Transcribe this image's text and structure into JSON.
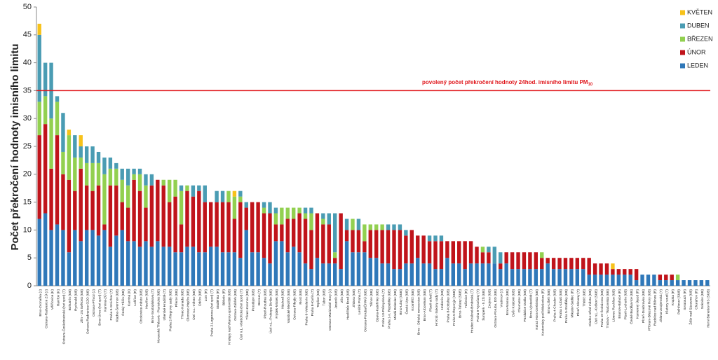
{
  "chart_data": {
    "type": "stacked_bar",
    "ylabel": "Počet překročení hodnoty imisního limitu",
    "ylim": [
      0,
      50
    ],
    "yticks": [
      0,
      5,
      10,
      15,
      20,
      25,
      30,
      35,
      40,
      45,
      50
    ],
    "legend_position": "upper right",
    "reference_line": {
      "value": 35,
      "color": "#e0161b",
      "label": "povolený počet překročení hodnoty 24hod. imisního limitu PM",
      "label_subscript": "10"
    },
    "categories": [
      "Brno-Zvonařka (J)",
      "Ostrava-Radvanice ZÚ (J)",
      "Věřňovice (K)",
      "Havířov (K)",
      "Ostrava-Českobratrská (hot spot) (T)",
      "Bohumín (UB)",
      "Rychvald (UB)",
      "Zlín - 2S Světová (UB)",
      "Ostrava-Radvanice OZO (UB)",
      "Ostrava-Přívoz (J)",
      "Brno-Úvoz (hot spot) (T)",
      "Karviná-ZÚ (T)",
      "Praha 5-Smíchov (T)",
      "Kladno-Švermov (UB)",
      "Český Těšín (UB)",
      "Karviná (K)",
      "Lošťice (R)",
      "Otrokovice-město (UB)",
      "Havířov (UB)",
      "Brno-Svatoplukova (T)",
      "Moravská Třebová - Piaristická (UB)",
      "Uherské Hradiště (T)",
      "Praha 2-Riegrovy sady (UB)",
      "Přerov (UB)",
      "Třinec-Kanada (UB)",
      "Olomouc-Hejčín (UB)",
      "Ústí n.L.-město (UB)",
      "Děčín (UB)",
      "Lom (R)",
      "Praha 2-Legerova (hot spot) (T)",
      "Studénka (R)",
      "Bělotín (R)",
      "Kralupy nad Vltavou-sportoviště (UB)",
      "Ostrava-Zábřeh (UB)",
      "Ústí n.L.-Všebořická (hot spot) (T)",
      "Třinec-Kosmos (UB)",
      "Prostějov (UB)",
      "Beroun (T)",
      "Plzeň-Roudná (UB)",
      "Ústí n.L.-Prokopa Diviše (UB)",
      "Frýdek-Místek (UB)",
      "Náchod (UB)",
      "Valašské Meziříčí (UB)",
      "Ostrava-Fifejdy (UB)",
      "Most (UB)",
      "Praha 6-Veleslavín (UB)",
      "Praha 8-Karlín (T)",
      "Teplice (UB)",
      "Tábor (UB)",
      "Ostrava-Mariánské Hory (J)",
      "Jeseník (UB)",
      "Zlín (UB)",
      "Havlíčkův Brod (UB)",
      "Jihlava (UB)",
      "Letiště Praha (T)",
      "Ostrava-Poruba/ČHMÚ (UB)",
      "Tišnov (UB)",
      "Opava-Kateřinky (UB)",
      "Praha 10-Průmyslová (T)",
      "Praha 1-n. Republiky (UB)",
      "Mladá Boleslav (UB)",
      "Brno-Lány (SUB)",
      "Česká Lípa (UB)",
      "Kroměříž (UB)",
      "Brno - Dětská nemocnice (UB)",
      "Brno-Arboretum (UB)",
      "Plzeň-střed (T)",
      "Hr.Král.-Sukovy sady (T)",
      "Hodonín (UB)",
      "Praha 8-Kobylisy (UB)",
      "Praha 5-Řeporyje (SUB)",
      "Brno-Tuřany (SUB)",
      "Tušimice (R)",
      "Hradec Králové-Brněnská (T)",
      "Praha 9-Vysočany (T)",
      "Šumperk - 5 ZŠ (UB)",
      "Znojmo (UB)",
      "Ostrava-Poruba, DD (UB)",
      "Vratimov (J)",
      "Brno-Masná (UB)",
      "Dvůr Králové (UB)",
      "Chomutov (UB)",
      "Pardubice Dukla (UB)",
      "Brno-Výstaviště (T)",
      "Kutná Hora-Orebitská (UB)",
      "Kostomlaty pod Milešovkou (R)",
      "Brno-Líšeň (UB)",
      "Praha 4-Chodov (UB)",
      "Praha 4-Libuš (UB)",
      "Praha 5-Stodůlky (UB)",
      "Mikulov-Sedlec (R)",
      "Plzeň-Slovany (T)",
      "Třebíč (UB)",
      "Kladno-střed města (UB)",
      "Ústí n.L.-Kočkov (SUB)",
      "Praha 10-Šrobárova (UB)",
      "Trutnov - Tkalcovská (UB)",
      "Liberec Rochlice (UB)",
      "Brumov-Bylnice (R)",
      "Plzeň-Lochotín (UB)",
      "České Budějovice (UB)",
      "Kamenný Újezd (R)",
      "Plzeň-Doubravka (UB)",
      "Příbram-Březové Hory (UB)",
      "Rudolice nad Bílinou (R)",
      "Jihlava-Znojemská (T)",
      "Klatovy soud (T)",
      "Krupka (R)",
      "Pelhřimov (SUB)",
      "Svratouch (R)",
      "Žďár nad Sázavou (UB)",
      "Churáňov (R)",
      "Sokolov (UB)",
      "Horní Benešov MS (SUB)"
    ],
    "series": [
      {
        "name": "LEDEN",
        "color": "#2f78b9",
        "values": [
          12,
          13,
          10,
          11,
          10,
          6,
          10,
          8,
          10,
          10,
          9,
          10,
          7,
          9,
          10,
          8,
          8,
          7,
          8,
          7,
          8,
          7,
          7,
          6,
          6,
          7,
          7,
          6,
          6,
          7,
          7,
          6,
          6,
          6,
          5,
          10,
          6,
          6,
          5,
          4,
          8,
          8,
          6,
          7,
          6,
          4,
          3,
          5,
          4,
          4,
          4,
          3,
          8,
          6,
          6,
          6,
          5,
          5,
          4,
          4,
          3,
          3,
          4,
          4,
          5,
          4,
          4,
          3,
          3,
          5,
          4,
          4,
          3,
          4,
          4,
          4,
          4,
          4,
          3,
          4,
          3,
          3,
          3,
          3,
          3,
          3,
          4,
          3,
          3,
          3,
          3,
          3,
          3,
          2,
          2,
          2,
          2,
          2,
          2,
          2,
          2,
          1,
          2,
          2,
          2,
          1,
          1,
          1,
          1,
          1,
          1,
          1,
          1,
          1
        ]
      },
      {
        "name": "ÚNOR",
        "color": "#c0141b",
        "values": [
          15,
          16,
          11,
          16,
          10,
          13,
          7,
          13,
          8,
          7,
          9,
          1,
          11,
          9,
          5,
          6,
          11,
          10,
          6,
          11,
          11,
          11,
          8,
          10,
          5,
          10,
          9,
          11,
          9,
          8,
          8,
          9,
          9,
          6,
          10,
          4,
          9,
          9,
          8,
          9,
          3,
          3,
          6,
          5,
          7,
          8,
          7,
          8,
          7,
          7,
          1,
          10,
          2,
          4,
          4,
          2,
          5,
          5,
          6,
          6,
          7,
          7,
          5,
          6,
          4,
          5,
          4,
          5,
          5,
          3,
          4,
          4,
          5,
          4,
          3,
          2,
          2,
          0,
          1,
          2,
          3,
          3,
          3,
          3,
          3,
          2,
          1,
          2,
          2,
          2,
          2,
          2,
          2,
          3,
          2,
          2,
          2,
          1,
          1,
          1,
          1,
          2,
          0,
          0,
          0,
          1,
          1,
          1,
          0,
          0,
          0,
          0,
          0,
          0
        ]
      },
      {
        "name": "BŘEZEN",
        "color": "#92d050",
        "values": [
          6,
          5,
          9,
          6,
          4,
          8,
          6,
          2,
          4,
          5,
          4,
          9,
          3,
          3,
          4,
          4,
          1,
          3,
          4,
          0,
          0,
          1,
          4,
          3,
          6,
          1,
          0,
          0,
          0,
          0,
          0,
          0,
          2,
          4,
          1,
          0,
          0,
          0,
          1,
          0,
          2,
          3,
          2,
          2,
          1,
          1,
          3,
          0,
          1,
          0,
          1,
          0,
          0,
          2,
          0,
          3,
          1,
          1,
          1,
          0,
          0,
          0,
          0,
          0,
          0,
          0,
          0,
          0,
          0,
          0,
          0,
          0,
          0,
          0,
          0,
          1,
          0,
          0,
          0,
          0,
          0,
          0,
          0,
          0,
          0,
          1,
          0,
          0,
          0,
          0,
          0,
          0,
          0,
          0,
          0,
          0,
          0,
          0,
          0,
          0,
          0,
          0,
          0,
          0,
          0,
          0,
          0,
          0,
          1,
          0,
          0,
          0,
          0,
          0
        ]
      },
      {
        "name": "DUBEN",
        "color": "#4a9cb3",
        "values": [
          12,
          6,
          10,
          1,
          7,
          0,
          4,
          2,
          3,
          3,
          2,
          3,
          2,
          1,
          2,
          3,
          1,
          1,
          2,
          2,
          0,
          0,
          0,
          0,
          1,
          0,
          2,
          1,
          3,
          0,
          2,
          2,
          0,
          0,
          1,
          1,
          0,
          0,
          1,
          2,
          1,
          0,
          0,
          0,
          0,
          1,
          1,
          0,
          1,
          2,
          7,
          0,
          2,
          0,
          2,
          0,
          0,
          0,
          0,
          1,
          1,
          1,
          1,
          0,
          0,
          0,
          1,
          1,
          1,
          0,
          0,
          0,
          0,
          0,
          0,
          0,
          1,
          3,
          2,
          0,
          0,
          0,
          0,
          0,
          0,
          0,
          0,
          0,
          0,
          0,
          0,
          0,
          0,
          0,
          0,
          0,
          0,
          0,
          0,
          0,
          0,
          0,
          0,
          0,
          0,
          0,
          0,
          0,
          0,
          0,
          0,
          0,
          0,
          0
        ]
      },
      {
        "name": "KVĚTEN",
        "color": "#f7c21a",
        "values": [
          2,
          0,
          0,
          0,
          0,
          1,
          0,
          2,
          0,
          0,
          0,
          0,
          0,
          0,
          0,
          0,
          0,
          0,
          0,
          0,
          0,
          0,
          0,
          0,
          0,
          0,
          0,
          0,
          0,
          0,
          0,
          0,
          0,
          1,
          0,
          0,
          0,
          0,
          0,
          0,
          0,
          0,
          0,
          0,
          0,
          0,
          0,
          0,
          0,
          0,
          0,
          0,
          0,
          0,
          0,
          0,
          0,
          0,
          0,
          0,
          0,
          0,
          0,
          0,
          0,
          0,
          0,
          0,
          0,
          0,
          0,
          0,
          0,
          0,
          0,
          0,
          0,
          0,
          0,
          0,
          0,
          0,
          0,
          0,
          0,
          0,
          0,
          0,
          0,
          0,
          0,
          0,
          0,
          0,
          0,
          0,
          0,
          1,
          0,
          0,
          0,
          0,
          0,
          0,
          0,
          0,
          0,
          0,
          0,
          0,
          0,
          0,
          0,
          0
        ]
      }
    ]
  }
}
